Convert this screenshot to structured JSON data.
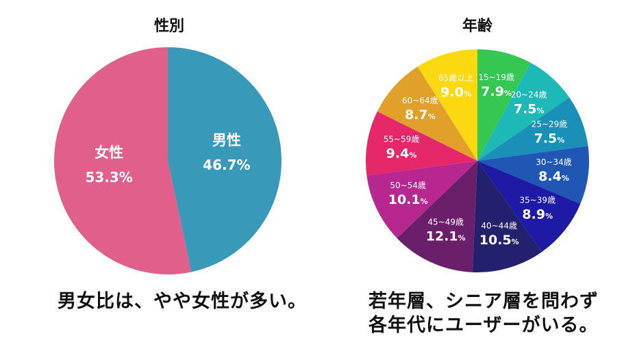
{
  "chart_data": [
    {
      "type": "pie",
      "title": "性別",
      "slices": [
        {
          "label": "男性",
          "value": 46.7,
          "display": "46.7%",
          "color": "#3899b9"
        },
        {
          "label": "女性",
          "value": 53.3,
          "display": "53.3%",
          "color": "#e15f8b"
        }
      ]
    },
    {
      "type": "pie",
      "title": "年齢",
      "slices": [
        {
          "label": "15~19歳",
          "value": 7.9,
          "num": "7.9",
          "unit": "%",
          "color": "#36c752"
        },
        {
          "label": "20~24歳",
          "value": 7.5,
          "num": "7.5",
          "unit": "%",
          "color": "#1cb9b7"
        },
        {
          "label": "25~29歳",
          "value": 7.5,
          "num": "7.5",
          "unit": "%",
          "color": "#1a8fb8"
        },
        {
          "label": "30~34歳",
          "value": 8.4,
          "num": "8.4",
          "unit": "%",
          "color": "#2157b4"
        },
        {
          "label": "35~39歳",
          "value": 8.9,
          "num": "8.9",
          "unit": "%",
          "color": "#1e1aa5"
        },
        {
          "label": "40~44歳",
          "value": 10.5,
          "num": "10.5",
          "unit": "%",
          "color": "#23206e"
        },
        {
          "label": "45~49歳",
          "value": 12.1,
          "num": "12.1",
          "unit": "%",
          "color": "#6b1f6b"
        },
        {
          "label": "50~54歳",
          "value": 10.1,
          "num": "10.1",
          "unit": "%",
          "color": "#b8278f"
        },
        {
          "label": "55~59歳",
          "value": 9.4,
          "num": "9.4",
          "unit": "%",
          "color": "#e6286a"
        },
        {
          "label": "60~64歳",
          "value": 8.7,
          "num": "8.7",
          "unit": "%",
          "color": "#e1a02a"
        },
        {
          "label": "65歳以上",
          "value": 9.0,
          "num": "9.0",
          "unit": "%",
          "color": "#fbd80f"
        }
      ]
    }
  ],
  "captions": {
    "left": "男女比は、やや女性が多い。",
    "right_line1": "若年層、シニア層を問わず",
    "right_line2": "各年代にユーザーがいる。"
  }
}
